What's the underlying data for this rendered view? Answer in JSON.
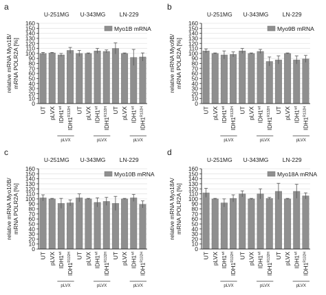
{
  "chart_data": [
    {
      "type": "bar",
      "panel_label": "a",
      "ylabel_lines": [
        "relative mRNA Myo1B/",
        "mRNA POLR2A [%]"
      ],
      "legend": "Myo1B mRNA",
      "ylim": [
        0,
        160
      ],
      "yticks": [
        "0",
        "10",
        "20",
        "30",
        "40",
        "50",
        "60",
        "70",
        "80",
        "90",
        "100",
        "110",
        "120",
        "130",
        "140",
        "150",
        "160"
      ],
      "cell_lines": [
        "U-251MG",
        "U-343MG",
        "LN-229"
      ],
      "vector_label": "pLVX",
      "categories": [
        "UT",
        "pLVX",
        "IDH1wt",
        "IDH1R132H",
        "UT",
        "pLVX",
        "IDH1wt",
        "IDH1R132H",
        "UT",
        "pLVX",
        "IDH1wt",
        "IDH1R132H"
      ],
      "values": [
        100,
        101,
        97,
        106,
        100,
        100,
        105,
        104,
        110,
        100,
        92,
        93
      ],
      "errors": [
        2,
        1,
        3,
        6,
        6,
        1,
        5,
        3,
        11,
        1,
        16,
        8
      ]
    },
    {
      "type": "bar",
      "panel_label": "b",
      "ylabel_lines": [
        "relative mRNA Myo9B/",
        "mRNA POLR2A [%]"
      ],
      "legend": "Myo9B mRNA",
      "ylim": [
        0,
        160
      ],
      "yticks": [
        "0",
        "10",
        "20",
        "30",
        "40",
        "50",
        "60",
        "70",
        "80",
        "90",
        "100",
        "110",
        "120",
        "130",
        "140",
        "150",
        "160"
      ],
      "cell_lines": [
        "U-251MG",
        "U-343MG",
        "LN-229"
      ],
      "vector_label": "pLVX",
      "categories": [
        "UT",
        "pLVX",
        "IDH1wt",
        "IDH1R132H",
        "UT",
        "pLVX",
        "IDH1wt",
        "IDH1R132H",
        "UT",
        "pLVX",
        "IDH1wt",
        "IDH1R132H"
      ],
      "values": [
        105,
        100,
        97,
        98,
        105,
        100,
        104,
        84,
        87,
        100,
        87,
        89
      ],
      "errors": [
        4,
        1,
        8,
        5,
        5,
        1,
        4,
        9,
        8,
        1,
        8,
        7
      ]
    },
    {
      "type": "bar",
      "panel_label": "c",
      "ylabel_lines": [
        "relative mRNA Myo10B/",
        "mRNA POLR2A [%]"
      ],
      "legend": "Myo10B mRNA",
      "ylim": [
        0,
        160
      ],
      "yticks": [
        "0",
        "10",
        "20",
        "30",
        "40",
        "50",
        "60",
        "70",
        "80",
        "90",
        "100",
        "110",
        "120",
        "130",
        "140",
        "150",
        "160"
      ],
      "cell_lines": [
        "U-251MG",
        "U-343MG",
        "LN-229"
      ],
      "vector_label": "pLVX",
      "categories": [
        "UT",
        "pLVX",
        "IDH1wt",
        "IDH1R132H",
        "UT",
        "pLVX",
        "IDH1wt",
        "IDH1R132H",
        "UT",
        "pLVX",
        "IDH1wt",
        "IDH1R132H"
      ],
      "values": [
        102,
        100,
        91,
        92,
        102,
        100,
        93,
        95,
        91,
        100,
        102,
        89
      ],
      "errors": [
        6,
        1,
        10,
        6,
        8,
        1,
        9,
        8,
        14,
        1,
        7,
        7
      ]
    },
    {
      "type": "bar",
      "panel_label": "d",
      "ylabel_lines": [
        "relative mRNA Myo18A/",
        "mRNA POLR2A [%]"
      ],
      "legend": "Myo18A mRNA",
      "ylim": [
        0,
        160
      ],
      "yticks": [
        "0",
        "10",
        "20",
        "30",
        "40",
        "50",
        "60",
        "70",
        "80",
        "90",
        "100",
        "110",
        "120",
        "130",
        "140",
        "150",
        "160"
      ],
      "cell_lines": [
        "U-251MG",
        "U-343MG",
        "LN-229"
      ],
      "vector_label": "pLVX",
      "categories": [
        "UT",
        "pLVX",
        "IDH1wt",
        "IDH1R132H",
        "UT",
        "pLVX",
        "IDH1wt",
        "IDH1R132H",
        "UT",
        "pLVX",
        "IDH1wt",
        "IDH1R132H"
      ],
      "values": [
        112,
        100,
        92,
        101,
        110,
        100,
        110,
        101,
        115,
        100,
        115,
        106
      ],
      "errors": [
        9,
        1,
        8,
        7,
        6,
        1,
        10,
        2,
        16,
        1,
        14,
        6
      ]
    }
  ],
  "colors": {
    "bar": "#8f8f8f",
    "bar_edge": "#777777",
    "axis": "#333333",
    "grid": "#e4e4e4",
    "error": "#555555"
  }
}
